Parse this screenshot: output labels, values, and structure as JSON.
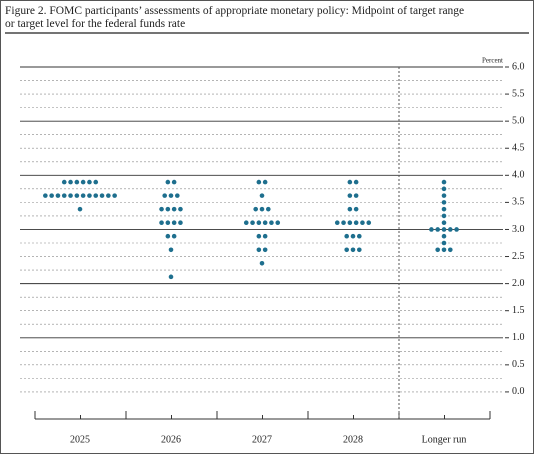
{
  "chart_data": {
    "type": "dot",
    "title_lines": [
      "Figure 2. FOMC participants’ assessments of appropriate monetary policy: Midpoint of target range",
      "or target level for the federal funds rate"
    ],
    "ylabel": "Percent",
    "color": "#1e6f8e",
    "ylim": [
      -0.5,
      6.0
    ],
    "yticks": [
      {
        "value": 0,
        "label": "0.0"
      },
      0.5,
      {
        "value": 1,
        "label": "1.0"
      },
      1.5,
      {
        "value": 2,
        "label": "2.0"
      },
      2.5,
      {
        "value": 3,
        "label": "3.0"
      },
      3.5,
      {
        "value": 4,
        "label": "4.0"
      },
      4.5,
      {
        "value": 5,
        "label": "5.0"
      },
      5.5,
      {
        "value": 6,
        "label": "6.0"
      }
    ],
    "ygrid": [
      0,
      0.25,
      0.5,
      0.75,
      1,
      1.25,
      1.5,
      1.75,
      2,
      2.25,
      2.5,
      2.75,
      3,
      3.25,
      3.5,
      3.75,
      4,
      4.25,
      4.5,
      4.75,
      5,
      5.25,
      5.5,
      5.75,
      6
    ],
    "categories": [
      "2025",
      "2026",
      "2027",
      "2028",
      "Longer run"
    ],
    "dots": [
      {
        "levels": [
          3.875,
          3.625,
          3.375
        ],
        "counts": [
          6,
          12,
          1
        ]
      },
      {
        "levels": [
          3.875,
          3.625,
          3.375,
          3.125,
          2.875,
          2.625,
          2.125
        ],
        "counts": [
          2,
          3,
          4,
          4,
          2,
          1,
          1
        ]
      },
      {
        "levels": [
          3.875,
          3.625,
          3.375,
          3.125,
          2.875,
          2.625,
          2.375
        ],
        "counts": [
          2,
          1,
          3,
          6,
          2,
          2,
          1
        ]
      },
      {
        "levels": [
          3.875,
          3.625,
          3.375,
          3.125,
          2.875,
          2.625
        ],
        "counts": [
          2,
          2,
          2,
          6,
          3,
          3
        ]
      },
      {
        "levels": [
          3.875,
          3.75,
          3.625,
          3.5,
          3.375,
          3.25,
          3.125,
          3.0,
          2.875,
          2.75,
          2.625
        ],
        "counts": [
          1,
          1,
          1,
          1,
          1,
          1,
          1,
          5,
          1,
          1,
          3
        ]
      }
    ]
  }
}
